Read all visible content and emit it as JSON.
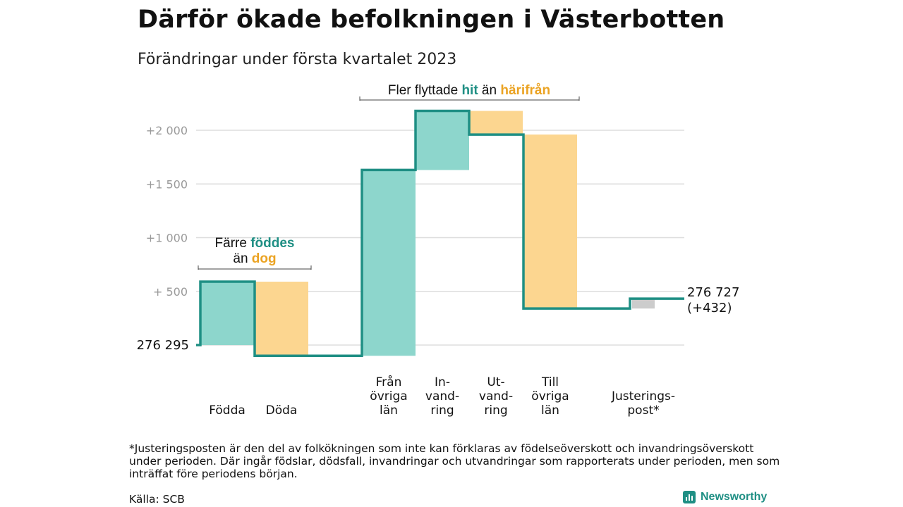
{
  "title": "Därför ökade befolkningen i Västerbotten",
  "subtitle": "Förändringar under första kvartalet 2023",
  "chart_data": {
    "type": "waterfall",
    "start_value": 276295,
    "start_label": "276 295",
    "end_value": 276727,
    "end_label_line1": "276 727",
    "end_label_line2": "(+432)",
    "yaxis_ticks": [
      {
        "value": 500,
        "label": "+ 500"
      },
      {
        "value": 1000,
        "label": "+1 000"
      },
      {
        "value": 1500,
        "label": "+1 500"
      },
      {
        "value": 2000,
        "label": "+2 000"
      }
    ],
    "ylim": [
      -150,
      2300
    ],
    "grid": true,
    "steps": [
      {
        "lines": [
          "Födda"
        ],
        "delta": 590,
        "kind": "in"
      },
      {
        "lines": [
          "Döda"
        ],
        "delta": -690,
        "kind": "out"
      },
      {
        "lines": [
          "Från",
          "övriga",
          "län"
        ],
        "delta": 1730,
        "kind": "in"
      },
      {
        "lines": [
          "In-",
          "vand-",
          "ring"
        ],
        "delta": 550,
        "kind": "in"
      },
      {
        "lines": [
          "Ut-",
          "vand-",
          "ring"
        ],
        "delta": -220,
        "kind": "out"
      },
      {
        "lines": [
          "Till",
          "övriga",
          "län"
        ],
        "delta": -1620,
        "kind": "out"
      },
      {
        "lines": [
          "Justerings-",
          "post*"
        ],
        "delta": 92,
        "kind": "adj"
      }
    ],
    "annotations": [
      {
        "parts": [
          {
            "text": "Färre ",
            "tone": "plain"
          },
          {
            "text": "föddes",
            "tone": "in"
          }
        ],
        "parts2": [
          {
            "text": "än ",
            "tone": "plain"
          },
          {
            "text": "dog",
            "tone": "out"
          }
        ]
      },
      {
        "parts": [
          {
            "text": "Fler flyttade ",
            "tone": "plain"
          },
          {
            "text": "hit",
            "tone": "in"
          },
          {
            "text": " än ",
            "tone": "plain"
          },
          {
            "text": "härifrån",
            "tone": "out"
          }
        ]
      }
    ]
  },
  "colors": {
    "in_fill": "#8dd6cc",
    "out_fill": "#fcd690",
    "adj_fill": "#cccccc",
    "line": "#1f8f84",
    "in_text": "#1f8f84",
    "out_text": "#eba323",
    "grid": "#dddddd"
  },
  "footnote": "*Justeringsposten är den del av folkökningen som inte kan förklaras av födelseöverskott och invandringsöverskott under perioden. Där ingår födslar, dödsfall, invandringar och utvandringar som rapporterats under perioden, men som inträffat före periodens början.",
  "source": "Källa: SCB",
  "brand": {
    "name": "Newsworthy",
    "icon": "bar-chart-icon"
  }
}
